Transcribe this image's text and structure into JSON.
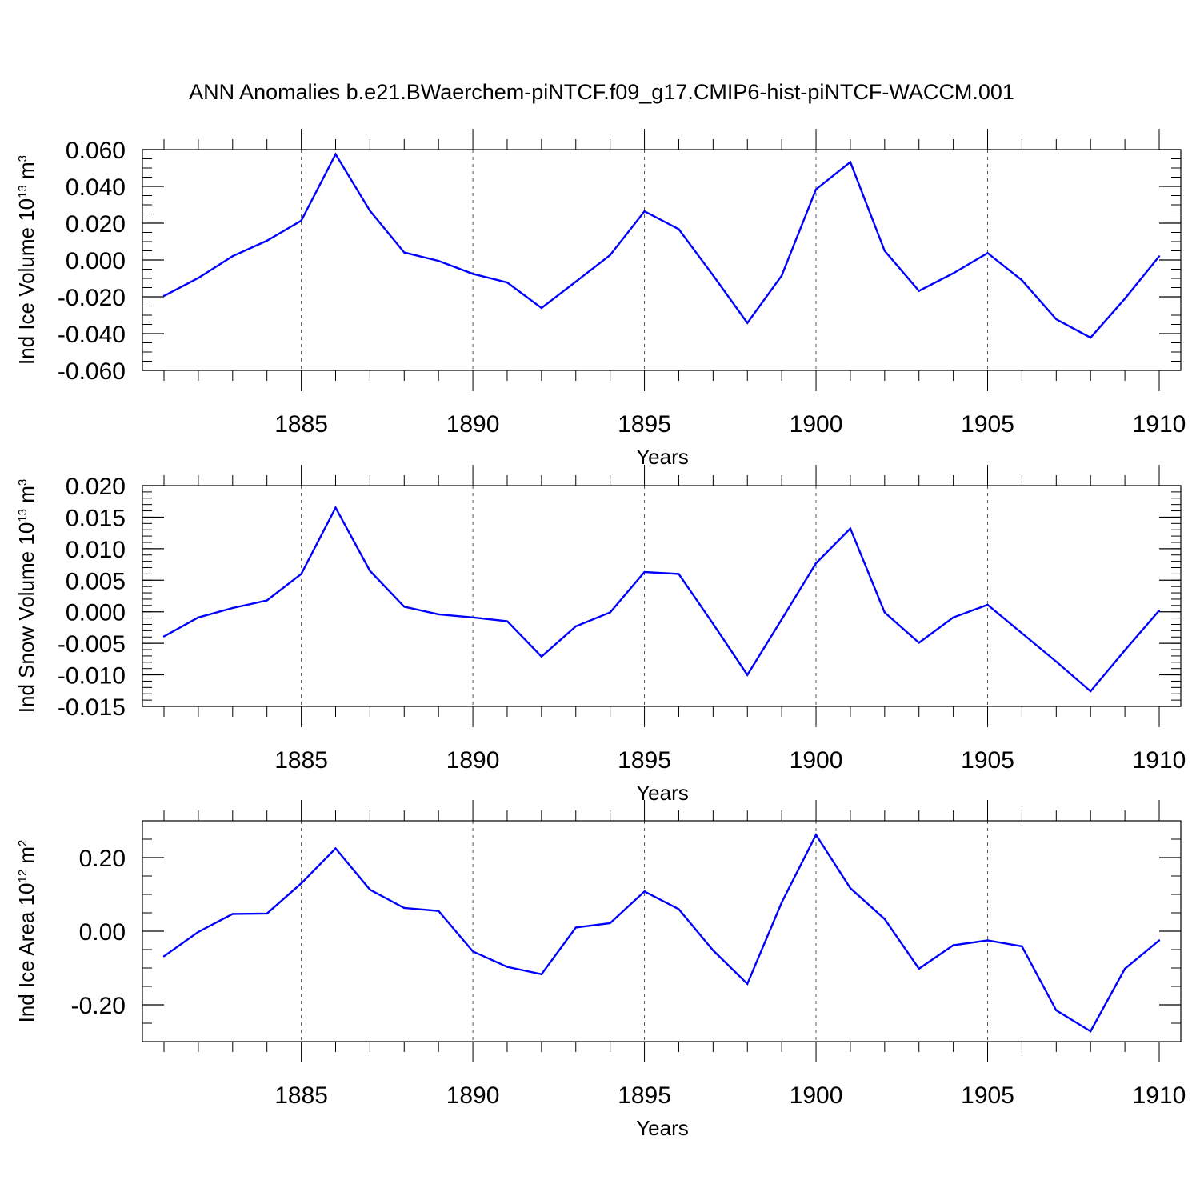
{
  "title": "ANN Anomalies b.e21.BWaerchem-piNTCF.f09_g17.CMIP6-hist-piNTCF-WACCM.001",
  "colors": {
    "series": "#0000ff",
    "axis": "#000000",
    "grid": "#555555"
  },
  "chart_data": [
    {
      "type": "line",
      "ylabel": {
        "main": "Ind Ice Volume 10",
        "exp": "13",
        "unit": " m",
        "unit_exp": "3"
      },
      "xlabel": "Years",
      "xlim": [
        1881,
        1910
      ],
      "ylim": [
        -0.06,
        0.06
      ],
      "yticks": [
        -0.06,
        -0.04,
        -0.02,
        0.0,
        0.02,
        0.04,
        0.06
      ],
      "ytick_labels": [
        "-0.060",
        "-0.040",
        "-0.020",
        "0.000",
        "0.020",
        "0.040",
        "0.060"
      ],
      "yminor_step": 0.005,
      "xticks": [
        1885,
        1890,
        1895,
        1900,
        1905,
        1910
      ],
      "xtick_labels": [
        "1885",
        "1890",
        "1895",
        "1900",
        "1905",
        "1910"
      ],
      "grid": "x-dashed",
      "x": [
        1881,
        1882,
        1883,
        1884,
        1885,
        1886,
        1887,
        1888,
        1889,
        1890,
        1891,
        1892,
        1893,
        1894,
        1895,
        1896,
        1897,
        1898,
        1899,
        1900,
        1901,
        1902,
        1903,
        1904,
        1905,
        1906,
        1907,
        1908,
        1909,
        1910
      ],
      "values": [
        -0.0195,
        -0.0098,
        0.0021,
        0.0105,
        0.0214,
        0.0575,
        0.0268,
        0.0041,
        -0.0005,
        -0.0075,
        -0.0122,
        -0.0261,
        -0.0118,
        0.0027,
        0.0265,
        0.0168,
        -0.0083,
        -0.0342,
        -0.0085,
        0.0384,
        0.0532,
        0.005,
        -0.0168,
        -0.0072,
        0.0038,
        -0.011,
        -0.0322,
        -0.0422,
        -0.021,
        0.002
      ]
    },
    {
      "type": "line",
      "ylabel": {
        "main": "Ind Snow Volume 10",
        "exp": "13",
        "unit": " m",
        "unit_exp": "3"
      },
      "xlabel": "Years",
      "xlim": [
        1881,
        1910
      ],
      "ylim": [
        -0.015,
        0.02
      ],
      "yticks": [
        -0.015,
        -0.01,
        -0.005,
        0.0,
        0.005,
        0.01,
        0.015,
        0.02
      ],
      "ytick_labels": [
        "-0.015",
        "-0.010",
        "-0.005",
        "0.000",
        "0.005",
        "0.010",
        "0.015",
        "0.020"
      ],
      "yminor_step": 0.001,
      "xticks": [
        1885,
        1890,
        1895,
        1900,
        1905,
        1910
      ],
      "xtick_labels": [
        "1885",
        "1890",
        "1895",
        "1900",
        "1905",
        "1910"
      ],
      "grid": "x-dashed",
      "x": [
        1881,
        1882,
        1883,
        1884,
        1885,
        1886,
        1887,
        1888,
        1889,
        1890,
        1891,
        1892,
        1893,
        1894,
        1895,
        1896,
        1897,
        1898,
        1899,
        1900,
        1901,
        1902,
        1903,
        1904,
        1905,
        1906,
        1907,
        1908,
        1909,
        1910
      ],
      "values": [
        -0.0039,
        -0.0009,
        0.0006,
        0.0018,
        0.006,
        0.0165,
        0.0065,
        0.0008,
        -0.0004,
        -0.0009,
        -0.0015,
        -0.0071,
        -0.0023,
        -0.0001,
        0.0063,
        0.006,
        -0.0019,
        -0.01,
        -0.0012,
        0.0077,
        0.0132,
        -0.0001,
        -0.0049,
        -0.0009,
        0.0011,
        -0.0034,
        -0.0079,
        -0.0126,
        -0.0061,
        0.0002
      ]
    },
    {
      "type": "line",
      "ylabel": {
        "main": "Ind Ice Area 10",
        "exp": "12",
        "unit": " m",
        "unit_exp": "2"
      },
      "xlabel": "Years",
      "xlim": [
        1881,
        1910
      ],
      "ylim": [
        -0.3,
        0.3
      ],
      "yticks": [
        -0.2,
        0.0,
        0.2
      ],
      "ytick_labels": [
        "-0.20",
        "0.00",
        "0.20"
      ],
      "yminor_step": 0.05,
      "xticks": [
        1885,
        1890,
        1895,
        1900,
        1905,
        1910
      ],
      "xtick_labels": [
        "1885",
        "1890",
        "1895",
        "1900",
        "1905",
        "1910"
      ],
      "grid": "x-dashed",
      "x": [
        1881,
        1882,
        1883,
        1884,
        1885,
        1886,
        1887,
        1888,
        1889,
        1890,
        1891,
        1892,
        1893,
        1894,
        1895,
        1896,
        1897,
        1898,
        1899,
        1900,
        1901,
        1902,
        1903,
        1904,
        1905,
        1906,
        1907,
        1908,
        1909,
        1910
      ],
      "values": [
        -0.068,
        -0.002,
        0.047,
        0.048,
        0.13,
        0.225,
        0.113,
        0.063,
        0.055,
        -0.055,
        -0.097,
        -0.117,
        0.01,
        0.022,
        0.108,
        0.06,
        -0.052,
        -0.143,
        0.078,
        0.262,
        0.117,
        0.033,
        -0.102,
        -0.038,
        -0.025,
        -0.041,
        -0.215,
        -0.272,
        -0.102,
        -0.025
      ]
    }
  ]
}
